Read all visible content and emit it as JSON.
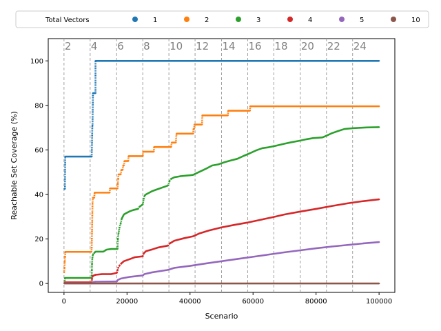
{
  "chart_data": {
    "type": "scatter",
    "xlabel": "Scenario",
    "ylabel": "Reachable Set Coverage (%)",
    "xlim": [
      -5000,
      105000
    ],
    "ylim": [
      -4,
      110
    ],
    "x_ticks": [
      0,
      20000,
      40000,
      60000,
      80000,
      100000
    ],
    "x_tick_labels": [
      "0",
      "20000",
      "40000",
      "60000",
      "80000",
      "100000"
    ],
    "y_ticks": [
      0,
      20,
      40,
      60,
      80,
      100
    ],
    "y_tick_labels": [
      "0",
      "20",
      "40",
      "60",
      "80",
      "100"
    ],
    "legend": {
      "title": "Total Vectors",
      "placement": "top, outside",
      "ncol": 7
    },
    "annotations": [
      {
        "label": "2",
        "x": 0
      },
      {
        "label": "4",
        "x": 8300
      },
      {
        "label": "6",
        "x": 16700
      },
      {
        "label": "8",
        "x": 25000
      },
      {
        "label": "10",
        "x": 33300
      },
      {
        "label": "12",
        "x": 41600
      },
      {
        "label": "14",
        "x": 50000
      },
      {
        "label": "16",
        "x": 58300
      },
      {
        "label": "18",
        "x": 66600
      },
      {
        "label": "20",
        "x": 75000
      },
      {
        "label": "22",
        "x": 83300
      },
      {
        "label": "24",
        "x": 91600
      }
    ],
    "series": [
      {
        "name": "1",
        "color": "#1f77b4",
        "points": [
          [
            100,
            42.5
          ],
          [
            300,
            42.5
          ],
          [
            400,
            57
          ],
          [
            8800,
            57
          ],
          [
            9000,
            71
          ],
          [
            9050,
            71
          ],
          [
            9200,
            85.5
          ],
          [
            10000,
            85.5
          ],
          [
            10000,
            100
          ],
          [
            100000,
            100
          ]
        ]
      },
      {
        "name": "2",
        "color": "#ff7f0e",
        "points": [
          [
            50,
            5
          ],
          [
            150,
            7
          ],
          [
            250,
            10
          ],
          [
            350,
            12
          ],
          [
            450,
            14.2
          ],
          [
            8700,
            14.2
          ],
          [
            8800,
            16
          ],
          [
            8850,
            20
          ],
          [
            8900,
            24
          ],
          [
            8950,
            28
          ],
          [
            9000,
            32
          ],
          [
            9050,
            36
          ],
          [
            9150,
            38.5
          ],
          [
            9600,
            38.5
          ],
          [
            9700,
            40.8
          ],
          [
            14500,
            40.8
          ],
          [
            14600,
            42.7
          ],
          [
            17000,
            42.7
          ],
          [
            17100,
            45
          ],
          [
            17200,
            47
          ],
          [
            17300,
            49
          ],
          [
            18000,
            49
          ],
          [
            18200,
            51
          ],
          [
            18600,
            51
          ],
          [
            18800,
            53
          ],
          [
            19000,
            53
          ],
          [
            19200,
            55
          ],
          [
            20400,
            55
          ],
          [
            20500,
            57.2
          ],
          [
            25000,
            57.2
          ],
          [
            25100,
            59.2
          ],
          [
            28500,
            59.2
          ],
          [
            28600,
            61.3
          ],
          [
            34000,
            61.3
          ],
          [
            34200,
            63.3
          ],
          [
            35500,
            63.3
          ],
          [
            35700,
            67.3
          ],
          [
            41000,
            67.3
          ],
          [
            41100,
            69.4
          ],
          [
            41300,
            69.4
          ],
          [
            41400,
            71.4
          ],
          [
            43800,
            71.4
          ],
          [
            43900,
            75.5
          ],
          [
            52000,
            75.5
          ],
          [
            52100,
            77.6
          ],
          [
            59000,
            77.6
          ],
          [
            59100,
            79.6
          ],
          [
            100000,
            79.6
          ]
        ]
      },
      {
        "name": "3",
        "color": "#2ca02c",
        "points": [
          [
            200,
            0.3
          ],
          [
            300,
            2.5
          ],
          [
            8800,
            2.5
          ],
          [
            8850,
            6
          ],
          [
            8900,
            9
          ],
          [
            9000,
            11.5
          ],
          [
            9200,
            13
          ],
          [
            9600,
            13.7
          ],
          [
            10000,
            14.3
          ],
          [
            12500,
            14.3
          ],
          [
            13500,
            15.2
          ],
          [
            15000,
            15.5
          ],
          [
            17000,
            15.5
          ],
          [
            17100,
            20
          ],
          [
            17300,
            22.5
          ],
          [
            17600,
            25
          ],
          [
            18000,
            27
          ],
          [
            18300,
            29
          ],
          [
            19000,
            31
          ],
          [
            20000,
            31.8
          ],
          [
            21000,
            32.5
          ],
          [
            22000,
            33
          ],
          [
            23500,
            33.5
          ],
          [
            24000,
            34.5
          ],
          [
            25000,
            35.5
          ],
          [
            25300,
            38
          ],
          [
            25600,
            39.5
          ],
          [
            26000,
            40
          ],
          [
            28000,
            41.5
          ],
          [
            30000,
            42.5
          ],
          [
            32000,
            43.5
          ],
          [
            33000,
            44
          ],
          [
            33500,
            46
          ],
          [
            34000,
            47
          ],
          [
            35000,
            47.7
          ],
          [
            37000,
            48.2
          ],
          [
            39000,
            48.5
          ],
          [
            40000,
            48.6
          ],
          [
            41000,
            48.8
          ],
          [
            42000,
            49.5
          ],
          [
            43500,
            50.5
          ],
          [
            45000,
            51.5
          ],
          [
            47000,
            53
          ],
          [
            49000,
            53.5
          ],
          [
            51000,
            54.5
          ],
          [
            53000,
            55.3
          ],
          [
            55000,
            56
          ],
          [
            57000,
            57.3
          ],
          [
            59000,
            58.5
          ],
          [
            61000,
            59.8
          ],
          [
            63000,
            60.8
          ],
          [
            65000,
            61.2
          ],
          [
            67000,
            61.8
          ],
          [
            70000,
            62.8
          ],
          [
            72000,
            63.4
          ],
          [
            75000,
            64.2
          ],
          [
            77000,
            64.8
          ],
          [
            79000,
            65.3
          ],
          [
            82000,
            65.6
          ],
          [
            83000,
            66.2
          ],
          [
            85000,
            67.5
          ],
          [
            87000,
            68.5
          ],
          [
            89000,
            69.4
          ],
          [
            92000,
            69.8
          ],
          [
            96000,
            70.1
          ],
          [
            100000,
            70.2
          ]
        ]
      },
      {
        "name": "4",
        "color": "#d62728",
        "points": [
          [
            200,
            0.5
          ],
          [
            8800,
            0.5
          ],
          [
            8900,
            2
          ],
          [
            9000,
            3
          ],
          [
            9300,
            3.5
          ],
          [
            10000,
            3.9
          ],
          [
            12000,
            4.2
          ],
          [
            15000,
            4.2
          ],
          [
            16800,
            4.8
          ],
          [
            17000,
            6
          ],
          [
            17200,
            7
          ],
          [
            17600,
            8
          ],
          [
            18200,
            9
          ],
          [
            19000,
            10
          ],
          [
            21000,
            11
          ],
          [
            22500,
            11.8
          ],
          [
            25000,
            12.2
          ],
          [
            25300,
            13.5
          ],
          [
            26000,
            14.5
          ],
          [
            28000,
            15.3
          ],
          [
            30000,
            16.2
          ],
          [
            33000,
            17
          ],
          [
            33600,
            18
          ],
          [
            35000,
            19.2
          ],
          [
            38000,
            20.3
          ],
          [
            41000,
            21.2
          ],
          [
            43000,
            22.5
          ],
          [
            46000,
            23.8
          ],
          [
            50000,
            25.2
          ],
          [
            54000,
            26.3
          ],
          [
            58000,
            27.3
          ],
          [
            62000,
            28.5
          ],
          [
            66000,
            29.7
          ],
          [
            70000,
            31
          ],
          [
            75000,
            32.3
          ],
          [
            80000,
            33.5
          ],
          [
            85000,
            34.8
          ],
          [
            90000,
            36
          ],
          [
            95000,
            37
          ],
          [
            100000,
            37.8
          ]
        ]
      },
      {
        "name": "5",
        "color": "#9467bd",
        "points": [
          [
            200,
            0.1
          ],
          [
            9000,
            0.1
          ],
          [
            9200,
            0.6
          ],
          [
            10000,
            0.8
          ],
          [
            16800,
            0.9
          ],
          [
            17000,
            1.5
          ],
          [
            18000,
            2.2
          ],
          [
            21000,
            3
          ],
          [
            25000,
            3.6
          ],
          [
            25500,
            4.2
          ],
          [
            28000,
            5
          ],
          [
            33000,
            6.1
          ],
          [
            35000,
            7
          ],
          [
            40000,
            7.9
          ],
          [
            45000,
            9
          ],
          [
            50000,
            10
          ],
          [
            55000,
            11
          ],
          [
            60000,
            12
          ],
          [
            65000,
            13
          ],
          [
            70000,
            14
          ],
          [
            75000,
            14.9
          ],
          [
            80000,
            15.8
          ],
          [
            85000,
            16.6
          ],
          [
            90000,
            17.3
          ],
          [
            95000,
            18
          ],
          [
            100000,
            18.6
          ]
        ]
      },
      {
        "name": "10",
        "color": "#8c564b",
        "points": [
          [
            100,
            0
          ],
          [
            100000,
            0
          ]
        ]
      }
    ]
  }
}
